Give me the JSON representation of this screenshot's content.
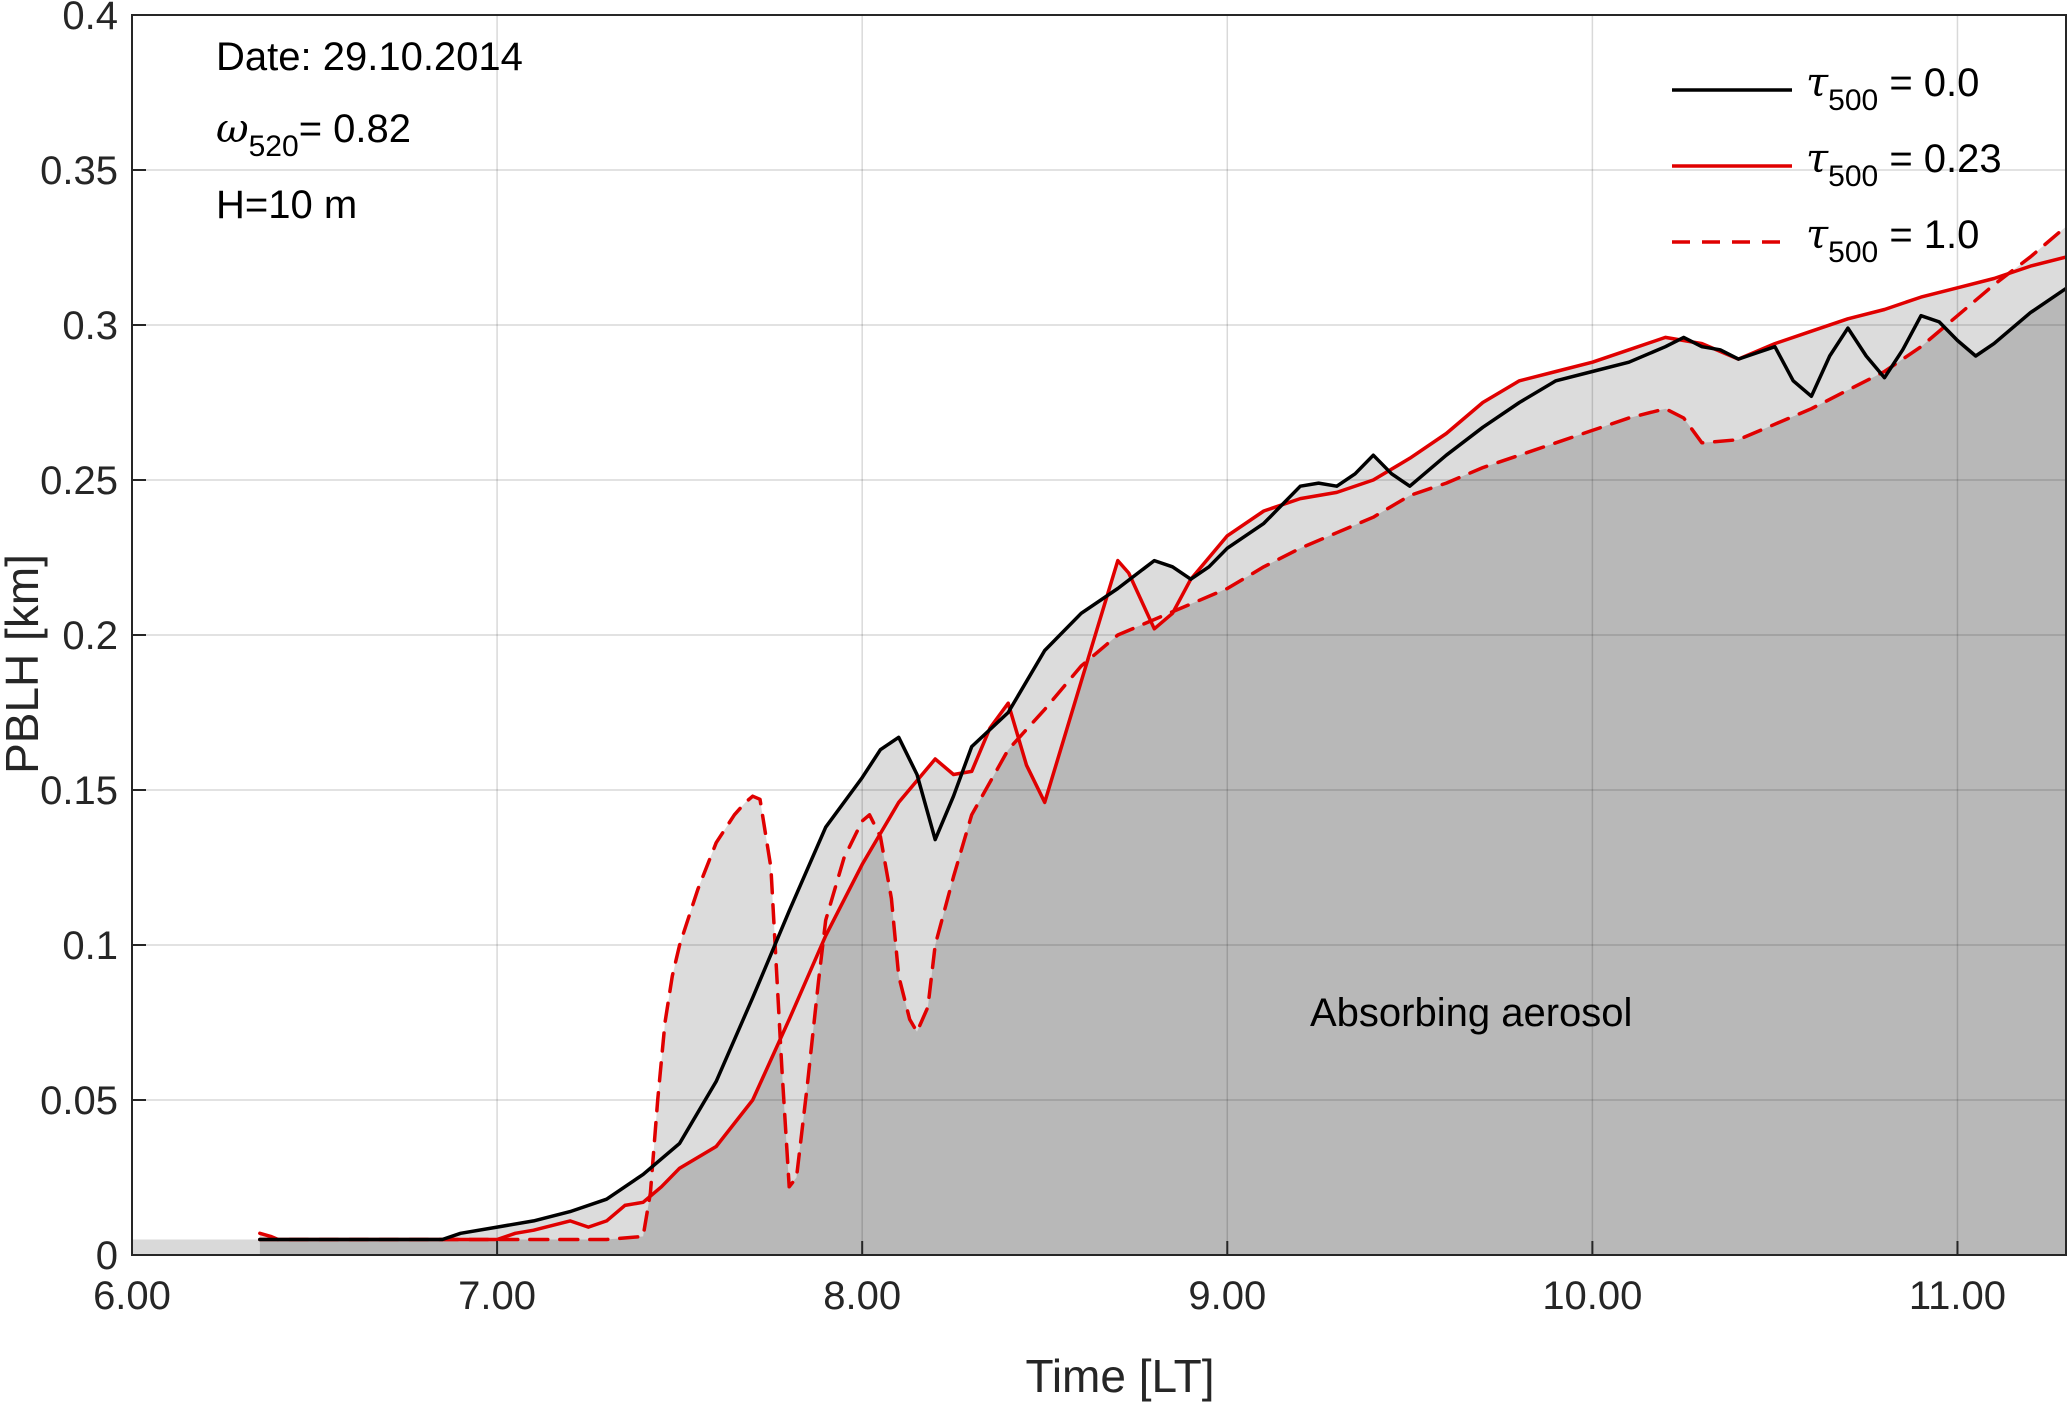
{
  "chart_data": {
    "type": "line",
    "xlabel": "Time [LT]",
    "ylabel": "PBLH [km]",
    "xlim": [
      6.0,
      11.3
    ],
    "ylim": [
      0,
      0.4
    ],
    "x_ticks": [
      "6.00",
      "7.00",
      "8.00",
      "9.00",
      "10.00",
      "11.00"
    ],
    "x_tick_values": [
      6,
      7,
      8,
      9,
      10,
      11
    ],
    "y_ticks": [
      "0",
      "0.05",
      "0.1",
      "0.15",
      "0.2",
      "0.25",
      "0.3",
      "0.35",
      "0.4"
    ],
    "y_tick_values": [
      0,
      0.05,
      0.1,
      0.15,
      0.2,
      0.25,
      0.3,
      0.35,
      0.4
    ],
    "grid": true,
    "legend_position": "top-right",
    "annotations": {
      "date": "Date: 29.10.2014",
      "omega_symbol": "ω",
      "omega_sub": "520",
      "omega_value": "= 0.82",
      "height": "H=10 m",
      "region_label": "Absorbing aerosol"
    },
    "legend": [
      {
        "symbol": "τ",
        "sub": "500",
        "value": " = 0.0",
        "color": "#000000",
        "dash": "none"
      },
      {
        "symbol": "τ",
        "sub": "500",
        "value": " = 0.23",
        "color": "#e00000",
        "dash": "none"
      },
      {
        "symbol": "τ",
        "sub": "500",
        "value": " = 1.0",
        "color": "#e00000",
        "dash": "18,12"
      }
    ],
    "series": [
      {
        "color": "#000000",
        "dash": "none",
        "x": [
          6.35,
          6.85,
          6.9,
          7.0,
          7.1,
          7.2,
          7.3,
          7.4,
          7.5,
          7.6,
          7.7,
          7.8,
          7.9,
          8.0,
          8.05,
          8.1,
          8.15,
          8.2,
          8.25,
          8.3,
          8.4,
          8.5,
          8.6,
          8.7,
          8.8,
          8.85,
          8.9,
          8.95,
          9.0,
          9.1,
          9.2,
          9.25,
          9.3,
          9.35,
          9.4,
          9.45,
          9.5,
          9.6,
          9.7,
          9.8,
          9.9,
          10.0,
          10.1,
          10.2,
          10.25,
          10.3,
          10.35,
          10.4,
          10.45,
          10.5,
          10.55,
          10.6,
          10.65,
          10.7,
          10.75,
          10.8,
          10.85,
          10.9,
          10.95,
          11.0,
          11.05,
          11.1,
          11.2,
          11.3
        ],
        "y": [
          0.005,
          0.005,
          0.007,
          0.009,
          0.011,
          0.014,
          0.018,
          0.026,
          0.036,
          0.056,
          0.083,
          0.111,
          0.138,
          0.154,
          0.163,
          0.167,
          0.155,
          0.134,
          0.148,
          0.164,
          0.175,
          0.195,
          0.207,
          0.215,
          0.224,
          0.222,
          0.218,
          0.222,
          0.228,
          0.236,
          0.248,
          0.249,
          0.248,
          0.252,
          0.258,
          0.252,
          0.248,
          0.258,
          0.267,
          0.275,
          0.282,
          0.285,
          0.288,
          0.293,
          0.296,
          0.293,
          0.292,
          0.289,
          0.291,
          0.293,
          0.282,
          0.277,
          0.29,
          0.299,
          0.29,
          0.283,
          0.292,
          0.303,
          0.301,
          0.295,
          0.29,
          0.294,
          0.304,
          0.312
        ]
      },
      {
        "color": "#e00000",
        "dash": "none",
        "x": [
          6.35,
          6.38,
          6.4,
          7.0,
          7.05,
          7.1,
          7.2,
          7.25,
          7.3,
          7.35,
          7.4,
          7.45,
          7.5,
          7.6,
          7.7,
          7.8,
          7.9,
          8.0,
          8.1,
          8.2,
          8.25,
          8.3,
          8.35,
          8.4,
          8.45,
          8.5,
          8.6,
          8.7,
          8.73,
          8.8,
          8.85,
          8.9,
          9.0,
          9.1,
          9.2,
          9.3,
          9.4,
          9.5,
          9.6,
          9.7,
          9.8,
          9.9,
          10.0,
          10.1,
          10.2,
          10.3,
          10.4,
          10.5,
          10.6,
          10.7,
          10.8,
          10.9,
          11.0,
          11.1,
          11.2,
          11.3
        ],
        "y": [
          0.007,
          0.006,
          0.005,
          0.005,
          0.007,
          0.008,
          0.011,
          0.009,
          0.011,
          0.016,
          0.017,
          0.022,
          0.028,
          0.035,
          0.05,
          0.076,
          0.103,
          0.126,
          0.146,
          0.16,
          0.155,
          0.156,
          0.17,
          0.178,
          0.158,
          0.146,
          0.185,
          0.224,
          0.22,
          0.202,
          0.207,
          0.218,
          0.232,
          0.24,
          0.244,
          0.246,
          0.25,
          0.257,
          0.265,
          0.275,
          0.282,
          0.285,
          0.288,
          0.292,
          0.296,
          0.294,
          0.289,
          0.294,
          0.298,
          0.302,
          0.305,
          0.309,
          0.312,
          0.315,
          0.319,
          0.322
        ]
      },
      {
        "color": "#e00000",
        "dash": "18,12",
        "x": [
          6.35,
          6.4,
          7.3,
          7.4,
          7.42,
          7.44,
          7.46,
          7.48,
          7.5,
          7.55,
          7.6,
          7.65,
          7.68,
          7.7,
          7.72,
          7.75,
          7.78,
          7.8,
          7.82,
          7.85,
          7.88,
          7.9,
          7.95,
          8.0,
          8.02,
          8.05,
          8.08,
          8.1,
          8.13,
          8.15,
          8.18,
          8.2,
          8.25,
          8.3,
          8.4,
          8.5,
          8.6,
          8.7,
          8.8,
          8.9,
          9.0,
          9.1,
          9.2,
          9.3,
          9.4,
          9.5,
          9.6,
          9.7,
          9.8,
          9.9,
          10.0,
          10.1,
          10.2,
          10.25,
          10.3,
          10.4,
          10.5,
          10.6,
          10.7,
          10.8,
          10.9,
          11.0,
          11.1,
          11.2,
          11.3
        ],
        "y": [
          0.005,
          0.005,
          0.005,
          0.006,
          0.02,
          0.05,
          0.075,
          0.09,
          0.1,
          0.118,
          0.133,
          0.142,
          0.146,
          0.148,
          0.147,
          0.125,
          0.06,
          0.022,
          0.025,
          0.055,
          0.088,
          0.108,
          0.128,
          0.14,
          0.142,
          0.135,
          0.115,
          0.09,
          0.076,
          0.072,
          0.08,
          0.1,
          0.122,
          0.142,
          0.163,
          0.176,
          0.19,
          0.2,
          0.205,
          0.21,
          0.215,
          0.222,
          0.228,
          0.233,
          0.238,
          0.245,
          0.249,
          0.254,
          0.258,
          0.262,
          0.266,
          0.27,
          0.273,
          0.27,
          0.262,
          0.263,
          0.268,
          0.273,
          0.279,
          0.285,
          0.293,
          0.303,
          0.313,
          0.322,
          0.332
        ]
      }
    ]
  }
}
